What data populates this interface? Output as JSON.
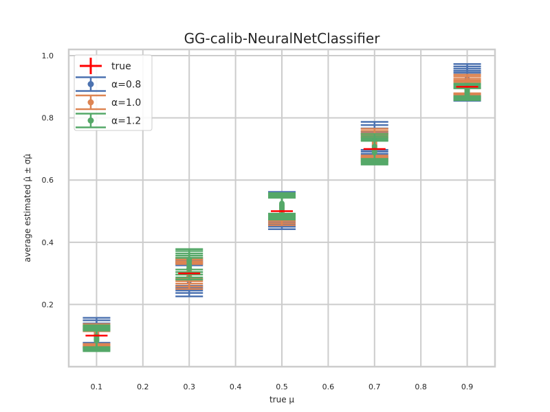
{
  "chart_data": {
    "type": "scatter",
    "title": "GG-calib-NeuralNetClassifier",
    "xlabel": "true μ",
    "ylabel": "average estimated μ̂ ± σμ̂",
    "xlim": [
      0.04,
      0.96
    ],
    "ylim": [
      0.0,
      1.02
    ],
    "xticks": [
      "0.1",
      "0.2",
      "0.3",
      "0.4",
      "0.5",
      "0.6",
      "0.7",
      "0.8",
      "0.9"
    ],
    "yticks": [
      "0.2",
      "0.4",
      "0.6",
      "0.8",
      "1.0"
    ],
    "grid": true,
    "legend_position": "top-left",
    "true_values": {
      "name": "true",
      "color": "#ff0000",
      "x": [
        0.1,
        0.3,
        0.5,
        0.7,
        0.9
      ],
      "y": [
        0.1,
        0.3,
        0.5,
        0.7,
        0.9
      ],
      "err": 0.003
    },
    "series": [
      {
        "name": "α=0.8",
        "color": "#4c72b0",
        "x": [
          0.1,
          0.3,
          0.5,
          0.7,
          0.9
        ],
        "y": [
          [
            0.117,
            0.111,
            0.103,
            0.095,
            0.088
          ],
          [
            0.276,
            0.284,
            0.29,
            0.296,
            0.302
          ],
          [
            0.497,
            0.502,
            0.507,
            0.512,
            0.516
          ],
          [
            0.742,
            0.734,
            0.725,
            0.716,
            0.71
          ],
          [
            0.925,
            0.918,
            0.912,
            0.906,
            0.9
          ]
        ],
        "err": [
          [
            0.04,
            0.038,
            0.036,
            0.034,
            0.033
          ],
          [
            0.05,
            0.047,
            0.045,
            0.043,
            0.042
          ],
          [
            0.055,
            0.052,
            0.05,
            0.048,
            0.046
          ],
          [
            0.045,
            0.043,
            0.041,
            0.04,
            0.039
          ],
          [
            0.048,
            0.047,
            0.046,
            0.045,
            0.045
          ]
        ]
      },
      {
        "name": "α=1.0",
        "color": "#dd8452",
        "x": [
          0.1,
          0.3,
          0.5,
          0.7,
          0.9
        ],
        "y": [
          [
            0.105,
            0.1,
            0.095,
            0.091,
            0.087
          ],
          [
            0.29,
            0.296,
            0.303,
            0.31,
            0.316
          ],
          [
            0.5,
            0.505,
            0.51,
            0.514,
            0.518
          ],
          [
            0.722,
            0.716,
            0.71,
            0.704,
            0.698
          ],
          [
            0.909,
            0.904,
            0.898,
            0.893,
            0.888
          ]
        ],
        "err": [
          [
            0.032,
            0.03,
            0.029,
            0.028,
            0.027
          ],
          [
            0.04,
            0.038,
            0.036,
            0.035,
            0.034
          ],
          [
            0.045,
            0.043,
            0.041,
            0.04,
            0.039
          ],
          [
            0.043,
            0.042,
            0.041,
            0.04,
            0.039
          ],
          [
            0.03,
            0.029,
            0.028,
            0.027,
            0.027
          ]
        ]
      },
      {
        "name": "α=1.2",
        "color": "#55a868",
        "x": [
          0.1,
          0.3,
          0.5,
          0.7,
          0.9
        ],
        "y": [
          [
            0.098,
            0.094,
            0.09,
            0.086,
            0.083
          ],
          [
            0.315,
            0.322,
            0.33,
            0.338,
            0.345
          ],
          [
            0.508,
            0.512,
            0.517,
            0.521,
            0.525
          ],
          [
            0.708,
            0.702,
            0.697,
            0.692,
            0.688
          ],
          [
            0.89,
            0.886,
            0.882,
            0.878,
            0.876
          ]
        ],
        "err": [
          [
            0.035,
            0.034,
            0.033,
            0.033,
            0.033
          ],
          [
            0.035,
            0.035,
            0.034,
            0.034,
            0.033
          ],
          [
            0.035,
            0.034,
            0.034,
            0.033,
            0.033
          ],
          [
            0.04,
            0.039,
            0.038,
            0.038,
            0.038
          ],
          [
            0.02,
            0.02,
            0.019,
            0.019,
            0.019
          ]
        ]
      }
    ]
  }
}
